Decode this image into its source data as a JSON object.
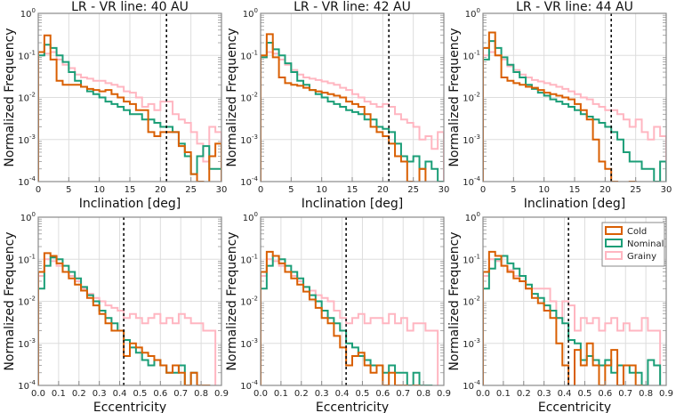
{
  "chart_data": {
    "type": "histogram-grid",
    "colors": {
      "Cold": "#d95f02",
      "Nominal": "#1b9e77",
      "Grainy": "#ffb6c1",
      "vline": "#111111",
      "frame": "#8a8a8a",
      "grid": "#dddddd"
    },
    "legend": {
      "placement": "top-right of bottom-right panel",
      "entries": [
        "Cold",
        "Nominal",
        "Grainy"
      ]
    },
    "panels": [
      {
        "title": "LR - VR line: 40 AU",
        "xlabel": "Inclination [deg]",
        "ylabel": "Normalized Frequency",
        "xlim": [
          0,
          30
        ],
        "ylim": [
          0.0001,
          1
        ],
        "xticks": [
          0,
          5,
          10,
          15,
          20,
          25,
          30
        ],
        "xtick_labels": [
          "0",
          "5",
          "10",
          "15",
          "20",
          "25",
          "30"
        ],
        "ytick_labels": [
          "10^0",
          "10^-1",
          "10^-2",
          "10^-3",
          "10^-4"
        ],
        "vline": 21,
        "bin_start": 0,
        "bin_width": 1,
        "series": [
          {
            "name": "Grainy",
            "values": [
              0.1,
              0.11,
              0.12,
              0.08,
              0.06,
              0.05,
              0.035,
              0.03,
              0.028,
              0.025,
              0.025,
              0.022,
              0.02,
              0.018,
              0.014,
              0.013,
              0.01,
              0.006,
              0.007,
              0.005,
              0.008,
              0.008,
              0.004,
              0.003,
              0.0025,
              0.0015,
              0.0008,
              0.0003,
              0.002,
              0.0015
            ]
          },
          {
            "name": "Nominal",
            "values": [
              0.1,
              0.18,
              0.15,
              0.1,
              0.07,
              0.04,
              0.025,
              0.018,
              0.014,
              0.012,
              0.01,
              0.008,
              0.007,
              0.006,
              0.005,
              0.004,
              0.004,
              0.003,
              0.003,
              0.0025,
              0.002,
              0.002,
              0.0015,
              0.0008,
              0.0004,
              0.00015,
              0.0004,
              0.0007,
              0.0002,
              0.0002
            ]
          },
          {
            "name": "Cold",
            "values": [
              0.12,
              0.3,
              0.08,
              0.025,
              0.02,
              0.02,
              0.02,
              0.018,
              0.016,
              0.015,
              0.014,
              0.015,
              0.012,
              0.01,
              0.008,
              0.007,
              0.005,
              0.005,
              0.0015,
              0.0012,
              0.0015,
              0.0015,
              0.0015,
              0.0007,
              0.0005,
              0.00015,
              0.0001,
              0,
              0.0004,
              0.0008
            ]
          }
        ]
      },
      {
        "title": "LR - VR line: 42 AU",
        "xlabel": "Inclination [deg]",
        "ylabel": "Normalized Frequency",
        "xlim": [
          0,
          30
        ],
        "ylim": [
          0.0001,
          1
        ],
        "xticks": [
          0,
          5,
          10,
          15,
          20,
          25,
          30
        ],
        "xtick_labels": [
          "0",
          "5",
          "10",
          "15",
          "20",
          "25",
          "30"
        ],
        "ytick_labels": [
          "10^0",
          "10^-1",
          "10^-2",
          "10^-3",
          "10^-4"
        ],
        "vline": 21,
        "bin_start": 0,
        "bin_width": 1,
        "series": [
          {
            "name": "Grainy",
            "values": [
              0.09,
              0.12,
              0.11,
              0.08,
              0.06,
              0.045,
              0.035,
              0.03,
              0.028,
              0.026,
              0.024,
              0.022,
              0.02,
              0.017,
              0.015,
              0.012,
              0.01,
              0.008,
              0.007,
              0.006,
              0.007,
              0.006,
              0.004,
              0.003,
              0.0025,
              0.002,
              0.001,
              0.0012,
              0.0006,
              0.0015
            ]
          },
          {
            "name": "Nominal",
            "values": [
              0.09,
              0.2,
              0.14,
              0.1,
              0.065,
              0.04,
              0.025,
              0.02,
              0.015,
              0.012,
              0.01,
              0.008,
              0.007,
              0.006,
              0.005,
              0.0045,
              0.004,
              0.003,
              0.003,
              0.002,
              0.0018,
              0.0015,
              0.0008,
              0.0004,
              0.0003,
              0.0004,
              0.0002,
              0.0003,
              0.0002,
              0.0001
            ]
          },
          {
            "name": "Cold",
            "values": [
              0.1,
              0.32,
              0.09,
              0.03,
              0.022,
              0.02,
              0.019,
              0.017,
              0.015,
              0.014,
              0.013,
              0.012,
              0.011,
              0.01,
              0.008,
              0.007,
              0.006,
              0.004,
              0.002,
              0.0015,
              0.0012,
              0.0008,
              0.0004,
              0.0003,
              0.0001,
              0,
              0.0002,
              0,
              0,
              0
            ]
          }
        ]
      },
      {
        "title": "LR - VR line: 44 AU",
        "xlabel": "Inclination [deg]",
        "ylabel": "Normalized Frequency",
        "xlim": [
          0,
          30
        ],
        "ylim": [
          0.0001,
          1
        ],
        "xticks": [
          0,
          5,
          10,
          15,
          20,
          25,
          30
        ],
        "xtick_labels": [
          "0",
          "5",
          "10",
          "15",
          "20",
          "25",
          "30"
        ],
        "ytick_labels": [
          "10^0",
          "10^-1",
          "10^-2",
          "10^-3",
          "10^-4"
        ],
        "vline": 21,
        "bin_start": 0,
        "bin_width": 1,
        "series": [
          {
            "name": "Grainy",
            "values": [
              0.1,
              0.12,
              0.1,
              0.08,
              0.055,
              0.045,
              0.035,
              0.03,
              0.026,
              0.024,
              0.022,
              0.02,
              0.018,
              0.016,
              0.014,
              0.012,
              0.01,
              0.009,
              0.007,
              0.006,
              0.005,
              0.005,
              0.004,
              0.003,
              0.002,
              0.003,
              0.0015,
              0.001,
              0.002,
              0.0012
            ]
          },
          {
            "name": "Nominal",
            "values": [
              0.08,
              0.22,
              0.15,
              0.09,
              0.06,
              0.04,
              0.03,
              0.02,
              0.016,
              0.013,
              0.011,
              0.009,
              0.008,
              0.007,
              0.006,
              0.005,
              0.004,
              0.0035,
              0.003,
              0.0025,
              0.002,
              0.0015,
              0.001,
              0.0005,
              0.0003,
              0.0003,
              0.0002,
              0.0002,
              0.0001,
              0.0003
            ]
          },
          {
            "name": "Cold",
            "values": [
              0.15,
              0.35,
              0.1,
              0.03,
              0.025,
              0.022,
              0.02,
              0.018,
              0.017,
              0.015,
              0.013,
              0.012,
              0.011,
              0.01,
              0.009,
              0.007,
              0.005,
              0.003,
              0.001,
              0.0003,
              0.0002,
              0.0001,
              0,
              0,
              0.0001,
              0,
              0,
              0,
              0,
              0
            ]
          }
        ]
      },
      {
        "title": "",
        "xlabel": "Eccentricity",
        "ylabel": "Normalized Frequency",
        "xlim": [
          0,
          0.9
        ],
        "ylim": [
          0.0001,
          1
        ],
        "xticks": [
          0,
          0.1,
          0.2,
          0.3,
          0.4,
          0.5,
          0.6,
          0.7,
          0.8,
          0.9
        ],
        "xtick_labels": [
          "0.0",
          "0.1",
          "0.2",
          "0.3",
          "0.4",
          "0.5",
          "0.6",
          "0.7",
          "0.8",
          "0.9"
        ],
        "ytick_labels": [
          "10^0",
          "10^-1",
          "10^-2",
          "10^-3",
          "10^-4"
        ],
        "vline": 0.42,
        "bin_start": 0,
        "bin_width": 0.03,
        "series": [
          {
            "name": "Grainy",
            "values": [
              0.04,
              0.1,
              0.09,
              0.07,
              0.05,
              0.04,
              0.03,
              0.02,
              0.015,
              0.012,
              0.01,
              0.008,
              0.007,
              0.006,
              0.004,
              0.005,
              0.004,
              0.003,
              0.004,
              0.005,
              0.003,
              0.004,
              0.003,
              0.005,
              0.004,
              0.003,
              0.003,
              0.002,
              0.002,
              0
            ]
          },
          {
            "name": "Nominal",
            "values": [
              0.02,
              0.07,
              0.11,
              0.1,
              0.07,
              0.05,
              0.035,
              0.022,
              0.014,
              0.01,
              0.006,
              0.004,
              0.003,
              0.002,
              0.0012,
              0.0008,
              0.0006,
              0.0004,
              0.0003,
              0.0004,
              0.0003,
              0.0002,
              0.0002,
              0.0003,
              0.0001,
              0.0002,
              0.0001,
              0.0001,
              0,
              0
            ]
          },
          {
            "name": "Cold",
            "values": [
              0.05,
              0.14,
              0.12,
              0.08,
              0.05,
              0.035,
              0.025,
              0.018,
              0.012,
              0.008,
              0.005,
              0.003,
              0.002,
              0.002,
              0.0005,
              0.001,
              0.0008,
              0.0006,
              0.0005,
              0.0004,
              0.0003,
              0.0002,
              0.0003,
              0.0002,
              0.0001,
              0.0002,
              0.0001,
              0.0001,
              0,
              0
            ]
          }
        ]
      },
      {
        "title": "",
        "xlabel": "Eccentricity",
        "ylabel": "Normalized Frequency",
        "xlim": [
          0,
          0.9
        ],
        "ylim": [
          0.0001,
          1
        ],
        "xticks": [
          0,
          0.1,
          0.2,
          0.3,
          0.4,
          0.5,
          0.6,
          0.7,
          0.8,
          0.9
        ],
        "xtick_labels": [
          "0.0",
          "0.1",
          "0.2",
          "0.3",
          "0.4",
          "0.5",
          "0.6",
          "0.7",
          "0.8",
          "0.9"
        ],
        "ytick_labels": [
          "10^0",
          "10^-1",
          "10^-2",
          "10^-3",
          "10^-4"
        ],
        "vline": 0.42,
        "bin_start": 0,
        "bin_width": 0.03,
        "series": [
          {
            "name": "Grainy",
            "values": [
              0.04,
              0.1,
              0.09,
              0.07,
              0.05,
              0.04,
              0.03,
              0.022,
              0.018,
              0.014,
              0.012,
              0.01,
              0.006,
              0.004,
              0.003,
              0.004,
              0.005,
              0.003,
              0.004,
              0.004,
              0.003,
              0.005,
              0.003,
              0.004,
              0.002,
              0.003,
              0.003,
              0.002,
              0.002,
              0
            ]
          },
          {
            "name": "Nominal",
            "values": [
              0.02,
              0.07,
              0.12,
              0.1,
              0.07,
              0.05,
              0.035,
              0.022,
              0.014,
              0.01,
              0.006,
              0.004,
              0.003,
              0.002,
              0.001,
              0.0008,
              0.0005,
              0.0004,
              0.0003,
              0.0003,
              0.0002,
              0.0003,
              0.0002,
              0.0002,
              0.0001,
              0.0002,
              0.0001,
              0.0001,
              0,
              0
            ]
          },
          {
            "name": "Cold",
            "values": [
              0.05,
              0.15,
              0.12,
              0.08,
              0.05,
              0.035,
              0.025,
              0.017,
              0.011,
              0.007,
              0.004,
              0.003,
              0.0015,
              0.0008,
              0.0003,
              0.0005,
              0.0006,
              0.0003,
              0.0002,
              0.0003,
              0.0001,
              0.0002,
              0.0001,
              0.0001,
              0,
              0.0001,
              0,
              0,
              0,
              0
            ]
          }
        ]
      },
      {
        "title": "",
        "xlabel": "Eccentricity",
        "ylabel": "Normalized Frequency",
        "xlim": [
          0,
          0.9
        ],
        "ylim": [
          0.0001,
          1
        ],
        "xticks": [
          0,
          0.1,
          0.2,
          0.3,
          0.4,
          0.5,
          0.6,
          0.7,
          0.8,
          0.9
        ],
        "xtick_labels": [
          "0.0",
          "0.1",
          "0.2",
          "0.3",
          "0.4",
          "0.5",
          "0.6",
          "0.7",
          "0.8",
          "0.9"
        ],
        "ytick_labels": [
          "10^0",
          "10^-1",
          "10^-2",
          "10^-3",
          "10^-4"
        ],
        "vline": 0.42,
        "bin_start": 0,
        "bin_width": 0.03,
        "series": [
          {
            "name": "Grainy",
            "values": [
              0.04,
              0.1,
              0.09,
              0.07,
              0.055,
              0.04,
              0.03,
              0.02,
              0.02,
              0.02,
              0.02,
              0.01,
              0.004,
              0.01,
              0.008,
              0.002,
              0.004,
              0.003,
              0.004,
              0.002,
              0.003,
              0.004,
              0.002,
              0.003,
              0.002,
              0.002,
              0.004,
              0.002,
              0.002,
              0
            ]
          },
          {
            "name": "Nominal",
            "values": [
              0.02,
              0.06,
              0.1,
              0.12,
              0.08,
              0.06,
              0.04,
              0.025,
              0.015,
              0.012,
              0.008,
              0.006,
              0.004,
              0.003,
              0.0012,
              0.001,
              0.0004,
              0.0005,
              0.0004,
              0.0003,
              0.0004,
              0.0002,
              0.0003,
              0.0003,
              0.0002,
              0.0002,
              0.0001,
              0.0004,
              0.0003,
              0
            ]
          },
          {
            "name": "Cold",
            "values": [
              0.05,
              0.15,
              0.12,
              0.07,
              0.05,
              0.035,
              0.03,
              0.02,
              0.012,
              0.009,
              0.006,
              0.004,
              0.001,
              0.0003,
              0,
              0.0007,
              0.0003,
              0.001,
              0.0003,
              0.0001,
              0.0003,
              0.0007,
              0.0001,
              0.0003,
              0.0003,
              0.0001,
              0,
              0,
              0,
              0
            ]
          }
        ]
      }
    ]
  }
}
